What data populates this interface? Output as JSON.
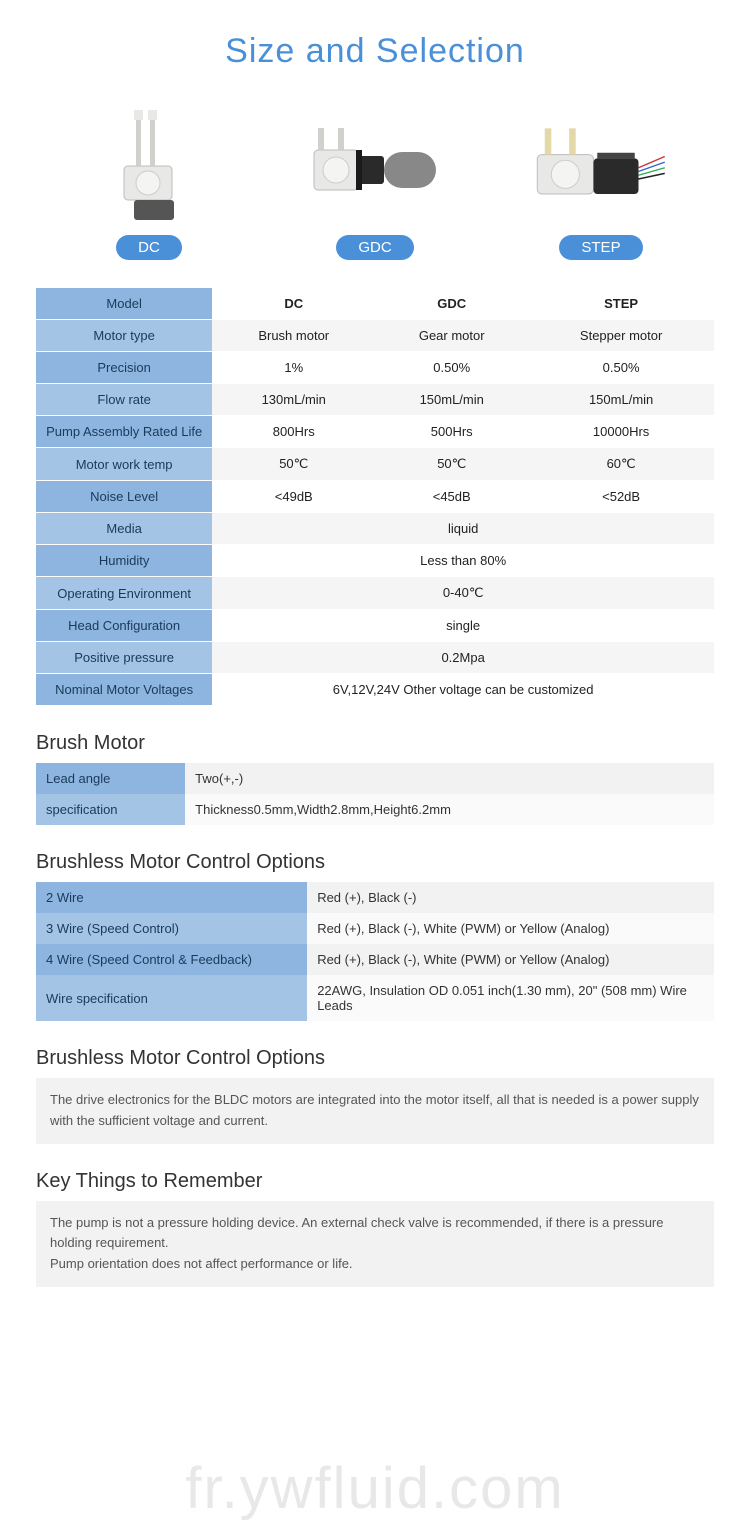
{
  "title": "Size and Selection",
  "products": [
    {
      "label": "DC"
    },
    {
      "label": "GDC"
    },
    {
      "label": "STEP"
    }
  ],
  "spec_table": {
    "columns": [
      "DC",
      "GDC",
      "STEP"
    ],
    "rows": [
      {
        "label": "Model",
        "values": [
          "DC",
          "GDC",
          "STEP"
        ],
        "bold": true
      },
      {
        "label": "Motor type",
        "values": [
          "Brush motor",
          "Gear motor",
          "Stepper motor"
        ]
      },
      {
        "label": "Precision",
        "values": [
          "1%",
          "0.50%",
          "0.50%"
        ]
      },
      {
        "label": "Flow rate",
        "values": [
          "130mL/min",
          "150mL/min",
          "150mL/min"
        ]
      },
      {
        "label": "Pump Assembly Rated Life",
        "values": [
          "800Hrs",
          "500Hrs",
          "10000Hrs"
        ]
      },
      {
        "label": "Motor work temp",
        "values": [
          "50℃",
          "50℃",
          "60℃"
        ]
      },
      {
        "label": "Noise Level",
        "values": [
          "<49dB",
          "<45dB",
          "<52dB"
        ]
      },
      {
        "label": "Media",
        "merged": "liquid"
      },
      {
        "label": "Humidity",
        "merged": "Less than 80%"
      },
      {
        "label": "Operating Environment",
        "merged": "0-40℃"
      },
      {
        "label": "Head Configuration",
        "merged": "single"
      },
      {
        "label": "Positive pressure",
        "merged": "0.2Mpa"
      },
      {
        "label": "Nominal Motor Voltages",
        "merged": "6V,12V,24V Other voltage can be customized"
      }
    ],
    "label_bg_odd": "#a3c4e5",
    "label_bg_even": "#8db5df",
    "cell_bg_odd": "#f5f5f5",
    "cell_bg_even": "#ffffff"
  },
  "sections": [
    {
      "title": "Brush Motor",
      "type": "kv",
      "rows": [
        {
          "k": "Lead angle",
          "v": "Two(+,-)"
        },
        {
          "k": "specification",
          "v": "Thickness0.5mm,Width2.8mm,Height6.2mm"
        }
      ]
    },
    {
      "title": "Brushless Motor Control Options",
      "type": "kv_wide",
      "rows": [
        {
          "k": "2 Wire",
          "v": "Red (+), Black (-)"
        },
        {
          "k": "3 Wire (Speed Control)",
          "v": "Red (+), Black (-), White (PWM) or Yellow (Analog)"
        },
        {
          "k": "4 Wire (Speed Control & Feedback)",
          "v": "Red (+), Black (-), White (PWM) or Yellow (Analog)"
        },
        {
          "k": "Wire specification",
          "v": "22AWG, Insulation OD 0.051 inch(1.30 mm), 20\" (508 mm) Wire Leads"
        }
      ]
    },
    {
      "title": "Brushless Motor Control Options",
      "type": "note",
      "text": "The drive electronics for the BLDC motors are integrated into the motor itself, all that is needed is a power supply with the sufficient voltage and current."
    },
    {
      "title": "Key Things to Remember",
      "type": "note",
      "text": "The pump is not a pressure holding device. An external check valve is recommended, if there is a pressure holding requirement.\nPump orientation does not affect performance or life."
    }
  ],
  "watermark": "fr.ywfluid.com",
  "colors": {
    "title": "#4a90d9",
    "badge_bg": "#4a90d9",
    "label_bg": "#8db5df",
    "label_bg_alt": "#a3c4e5",
    "cell_bg": "#f5f5f5",
    "note_bg": "#f2f2f2"
  }
}
